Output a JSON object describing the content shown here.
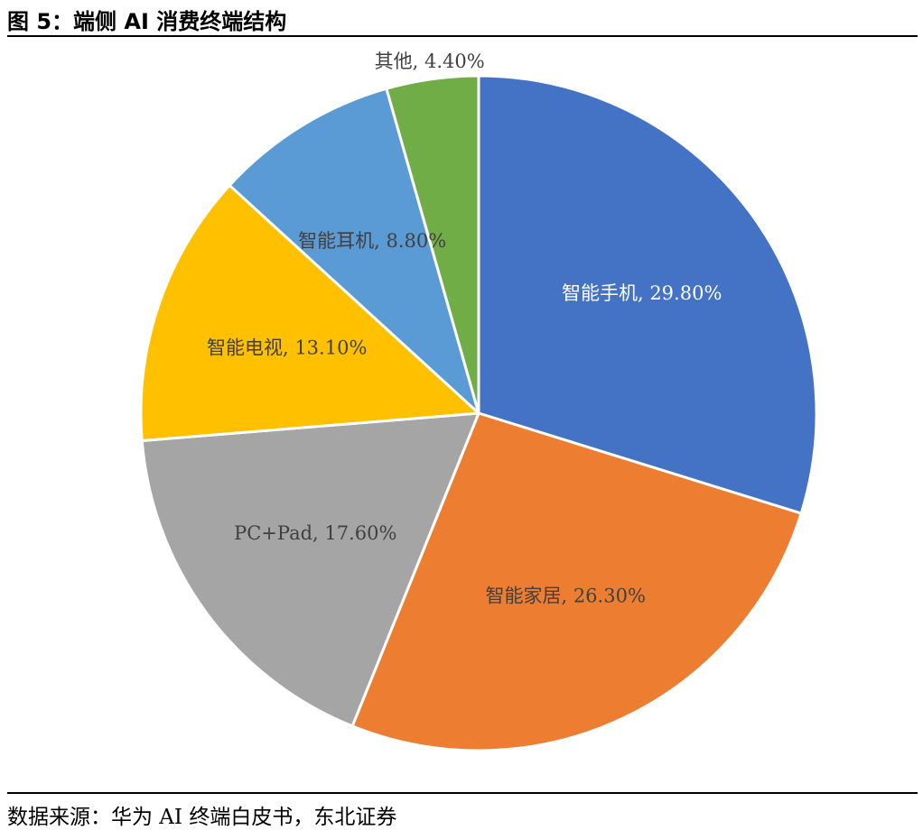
{
  "figure": {
    "title": "图 5：端侧 AI 消费终端结构",
    "source": "数据来源：华为 AI 终端白皮书，东北证券"
  },
  "chart_data": {
    "type": "pie",
    "start_angle_deg": 0,
    "direction": "clockwise",
    "slices": [
      {
        "name": "智能手机",
        "value": 29.8,
        "label": "智能手机, 29.80%",
        "color": "#4472C4",
        "label_color": "#ffffff"
      },
      {
        "name": "智能家居",
        "value": 26.3,
        "label": "智能家居, 26.30%",
        "color": "#ED7D31",
        "label_color": "#404040"
      },
      {
        "name": "PC+Pad",
        "value": 17.6,
        "label": "PC+Pad, 17.60%",
        "color": "#A5A5A5",
        "label_color": "#404040"
      },
      {
        "name": "智能电视",
        "value": 13.1,
        "label": "智能电视, 13.10%",
        "color": "#FFC000",
        "label_color": "#404040"
      },
      {
        "name": "智能耳机",
        "value": 8.8,
        "label": "智能耳机, 8.80%",
        "color": "#5B9BD5",
        "label_color": "#404040"
      },
      {
        "name": "其他",
        "value": 4.4,
        "label": "其他, 4.40%",
        "color": "#70AD47",
        "label_color": "#404040",
        "label_outside": true
      }
    ]
  }
}
